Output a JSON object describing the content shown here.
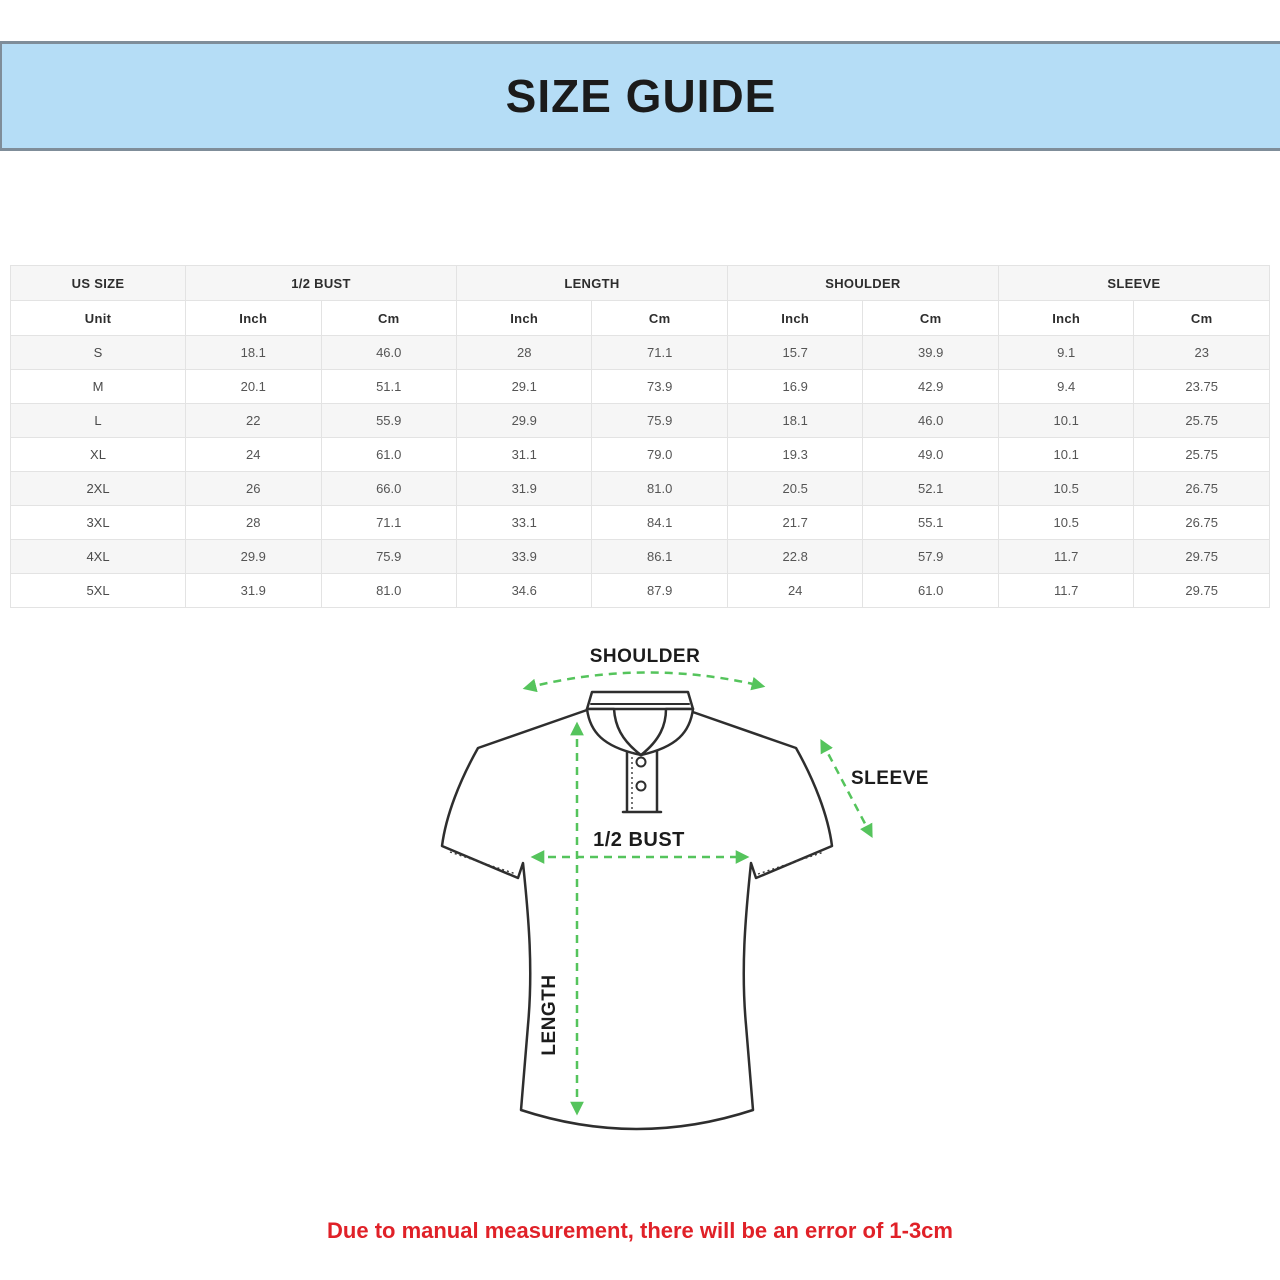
{
  "banner": {
    "title": "SIZE GUIDE",
    "bg_color": "#b5ddf6",
    "border_color": "#7f8d99"
  },
  "table": {
    "size_group_header": "US SIZE",
    "group_headers": [
      "1/2 BUST",
      "LENGTH",
      "SHOULDER",
      "SLEEVE"
    ],
    "unit_header": "Unit",
    "unit_cols": [
      "Inch",
      "Cm",
      "Inch",
      "Cm",
      "Inch",
      "Cm",
      "Inch",
      "Cm"
    ],
    "rows": [
      {
        "size": "S",
        "values": [
          "18.1",
          "46.0",
          "28",
          "71.1",
          "15.7",
          "39.9",
          "9.1",
          "23"
        ]
      },
      {
        "size": "M",
        "values": [
          "20.1",
          "51.1",
          "29.1",
          "73.9",
          "16.9",
          "42.9",
          "9.4",
          "23.75"
        ]
      },
      {
        "size": "L",
        "values": [
          "22",
          "55.9",
          "29.9",
          "75.9",
          "18.1",
          "46.0",
          "10.1",
          "25.75"
        ]
      },
      {
        "size": "XL",
        "values": [
          "24",
          "61.0",
          "31.1",
          "79.0",
          "19.3",
          "49.0",
          "10.1",
          "25.75"
        ]
      },
      {
        "size": "2XL",
        "values": [
          "26",
          "66.0",
          "31.9",
          "81.0",
          "20.5",
          "52.1",
          "10.5",
          "26.75"
        ]
      },
      {
        "size": "3XL",
        "values": [
          "28",
          "71.1",
          "33.1",
          "84.1",
          "21.7",
          "55.1",
          "10.5",
          "26.75"
        ]
      },
      {
        "size": "4XL",
        "values": [
          "29.9",
          "75.9",
          "33.9",
          "86.1",
          "22.8",
          "57.9",
          "11.7",
          "29.75"
        ]
      },
      {
        "size": "5XL",
        "values": [
          "31.9",
          "81.0",
          "34.6",
          "87.9",
          "24",
          "61.0",
          "11.7",
          "29.75"
        ]
      }
    ],
    "stripe_color": "#f6f6f6",
    "border_color": "#e3e3e3"
  },
  "diagram": {
    "labels": {
      "shoulder": "SHOULDER",
      "sleeve": "SLEEVE",
      "half_bust": "1/2 BUST",
      "length": "LENGTH"
    },
    "arrow_color": "#55c45c",
    "outline_color": "#2e2e2e"
  },
  "disclaimer": {
    "text": "Due to manual measurement, there will be an error of 1-3cm",
    "color": "#e02128"
  }
}
